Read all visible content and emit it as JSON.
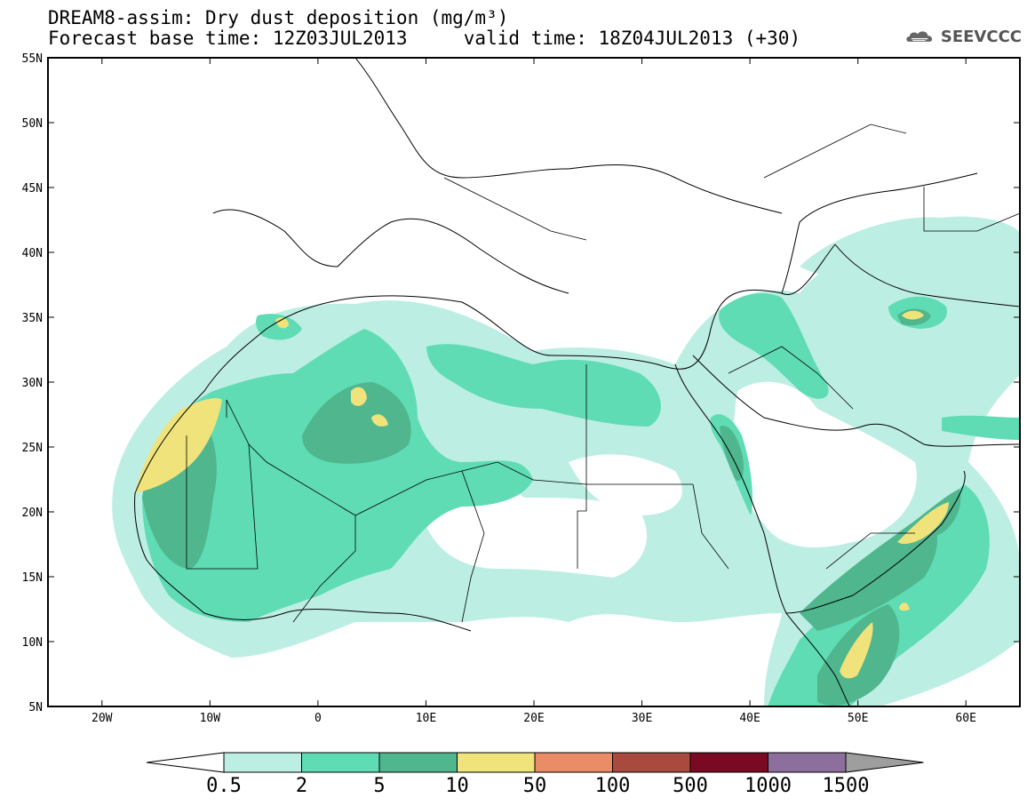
{
  "header": {
    "title": "DREAM8-assim: Dry dust deposition (mg/m³)",
    "subtitle": "Forecast base time: 12Z03JUL2013     valid time: 18Z04JUL2013 (+30)"
  },
  "logo": {
    "text": "SEEVCCC",
    "icon": "cloud-logo-icon"
  },
  "map": {
    "lon_range": [
      -25,
      65
    ],
    "lat_range": [
      5,
      55
    ],
    "lon_ticks": [
      {
        "value": -20,
        "label": "20W"
      },
      {
        "value": -10,
        "label": "10W"
      },
      {
        "value": 0,
        "label": "0"
      },
      {
        "value": 10,
        "label": "10E"
      },
      {
        "value": 20,
        "label": "20E"
      },
      {
        "value": 30,
        "label": "30E"
      },
      {
        "value": 40,
        "label": "40E"
      },
      {
        "value": 50,
        "label": "50E"
      },
      {
        "value": 60,
        "label": "60E"
      }
    ],
    "lat_ticks": [
      {
        "value": 55,
        "label": "55N"
      },
      {
        "value": 50,
        "label": "50N"
      },
      {
        "value": 45,
        "label": "45N"
      },
      {
        "value": 40,
        "label": "40N"
      },
      {
        "value": 35,
        "label": "35N"
      },
      {
        "value": 30,
        "label": "30N"
      },
      {
        "value": 25,
        "label": "25N"
      },
      {
        "value": 20,
        "label": "20N"
      },
      {
        "value": 15,
        "label": "15N"
      },
      {
        "value": 10,
        "label": "10N"
      },
      {
        "value": 5,
        "label": "5N"
      }
    ]
  },
  "colorbar": {
    "colors": [
      "#bdeee3",
      "#5fdcb4",
      "#4fb68e",
      "#f0e37c",
      "#ea8c66",
      "#a84b3e",
      "#7a0a24",
      "#8d6f9e",
      "#9e9e9e"
    ],
    "labels": [
      "0.5",
      "2",
      "5",
      "10",
      "50",
      "100",
      "500",
      "1000",
      "1500"
    ]
  }
}
